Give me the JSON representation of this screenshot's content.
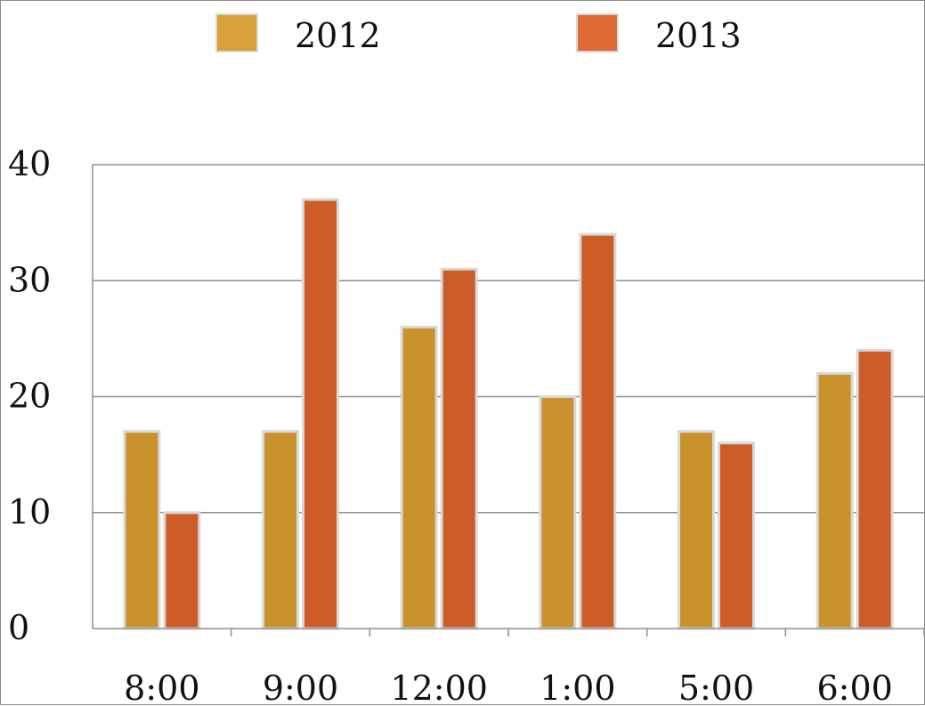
{
  "chart_data": {
    "type": "bar",
    "categories": [
      "8:00",
      "9:00",
      "12:00",
      "1:00",
      "5:00",
      "6:00"
    ],
    "series": [
      {
        "name": "2012",
        "values": [
          17,
          17,
          26,
          20,
          17,
          22
        ],
        "color": "#C9922C"
      },
      {
        "name": "2013",
        "values": [
          10,
          37,
          31,
          34,
          16,
          24
        ],
        "color": "#CD5C28"
      }
    ],
    "ylim": [
      0,
      40
    ],
    "yticks": [
      0,
      10,
      20,
      30,
      40
    ],
    "grid": true,
    "legend": "top-center"
  },
  "colors": {
    "grid": "#8f8f8f",
    "bar_outline": "#d9d9d9",
    "legend_2012": "#D9A03A",
    "legend_2013": "#DE6A36"
  }
}
